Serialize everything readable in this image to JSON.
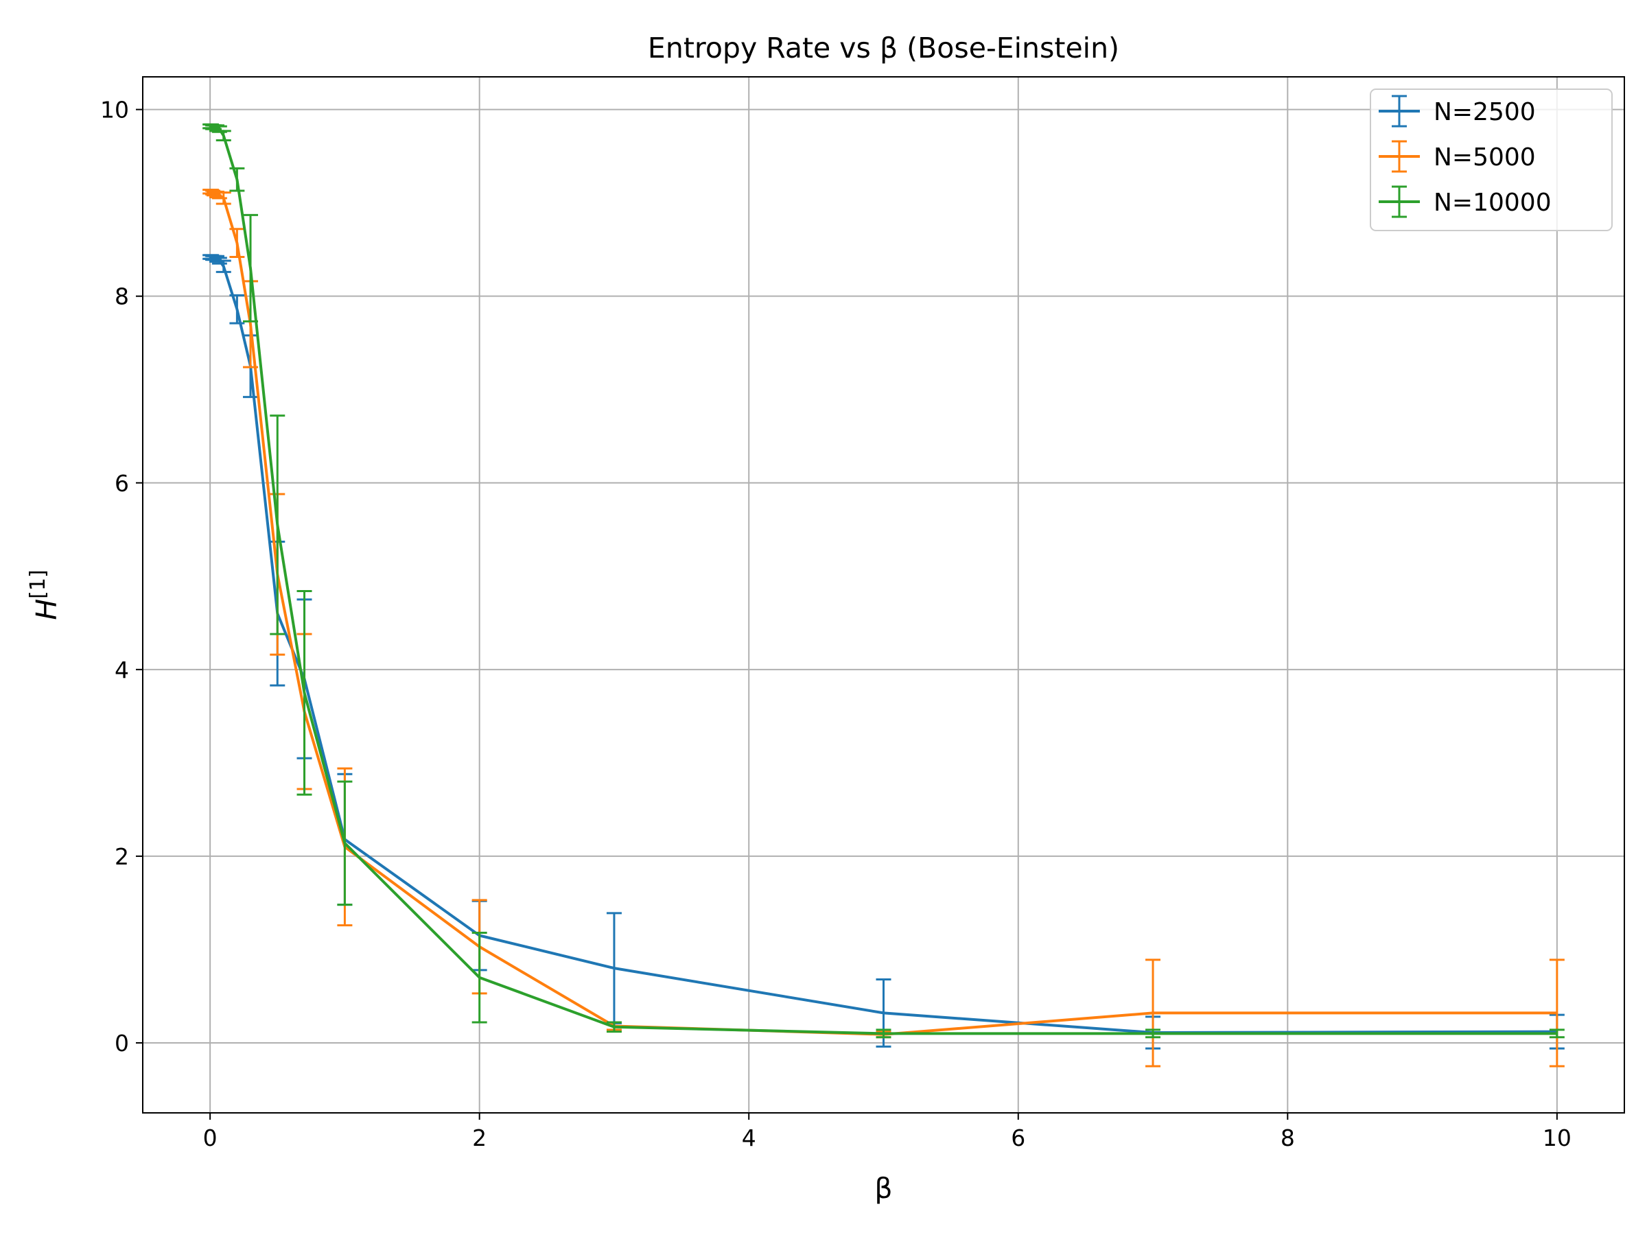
{
  "chart_data": {
    "type": "line",
    "title": "Entropy Rate vs β (Bose-Einstein)",
    "xlabel": "β",
    "ylabel_base": "H",
    "ylabel_sup": "[1]",
    "xlim": [
      -0.5,
      10.5
    ],
    "ylim": [
      -0.75,
      10.35
    ],
    "xticks": [
      0,
      2,
      4,
      6,
      8,
      10
    ],
    "yticks": [
      0,
      2,
      4,
      6,
      8,
      10
    ],
    "grid": true,
    "legend_position": "top-right",
    "series": [
      {
        "name": "N=2500",
        "color": "#1f77b4",
        "x": [
          0,
          0.01,
          0.02,
          0.03,
          0.05,
          0.07,
          0.1,
          0.2,
          0.3,
          0.5,
          0.7,
          1,
          2,
          3,
          5,
          7,
          10
        ],
        "y": [
          8.42,
          8.42,
          8.41,
          8.41,
          8.4,
          8.38,
          8.32,
          7.86,
          7.25,
          4.6,
          3.9,
          2.18,
          1.15,
          0.8,
          0.32,
          0.11,
          0.12
        ],
        "err": [
          0.02,
          0.02,
          0.02,
          0.02,
          0.03,
          0.03,
          0.06,
          0.15,
          0.33,
          0.77,
          0.85,
          0.7,
          0.37,
          0.59,
          0.36,
          0.17,
          0.18
        ]
      },
      {
        "name": "N=5000",
        "color": "#ff7f0e",
        "x": [
          0,
          0.01,
          0.02,
          0.03,
          0.05,
          0.07,
          0.1,
          0.2,
          0.3,
          0.5,
          0.7,
          1,
          2,
          3,
          5,
          7,
          10
        ],
        "y": [
          9.12,
          9.12,
          9.11,
          9.1,
          9.09,
          9.08,
          9.05,
          8.57,
          7.7,
          5.02,
          3.55,
          2.1,
          1.03,
          0.18,
          0.09,
          0.32,
          0.32
        ],
        "err": [
          0.02,
          0.02,
          0.02,
          0.02,
          0.03,
          0.03,
          0.06,
          0.15,
          0.46,
          0.86,
          0.83,
          0.84,
          0.5,
          0.04,
          0.03,
          0.57,
          0.57
        ]
      },
      {
        "name": "N=10000",
        "color": "#2ca02c",
        "x": [
          0,
          0.01,
          0.02,
          0.03,
          0.05,
          0.07,
          0.1,
          0.2,
          0.3,
          0.5,
          0.7,
          1,
          2,
          3,
          5,
          7,
          10
        ],
        "y": [
          9.82,
          9.82,
          9.81,
          9.81,
          9.8,
          9.79,
          9.72,
          9.25,
          8.3,
          5.55,
          3.75,
          2.14,
          0.7,
          0.17,
          0.1,
          0.1,
          0.1
        ],
        "err": [
          0.02,
          0.02,
          0.02,
          0.02,
          0.03,
          0.03,
          0.05,
          0.12,
          0.57,
          1.17,
          1.09,
          0.66,
          0.48,
          0.05,
          0.04,
          0.04,
          0.04
        ]
      }
    ]
  }
}
